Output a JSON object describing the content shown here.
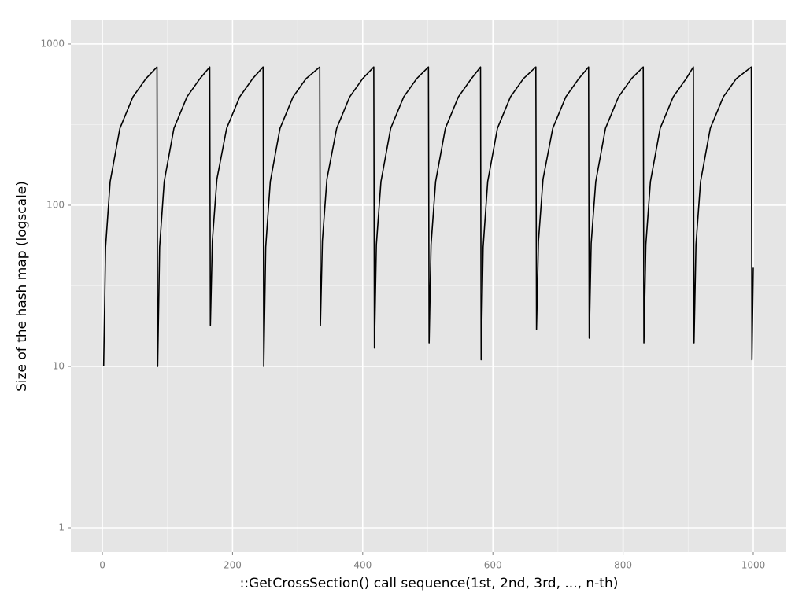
{
  "chart_data": {
    "type": "line",
    "x_label": "::GetCrossSection() call sequence(1st, 2nd, 3rd, ..., n-th)",
    "y_label": "Size of the hash map (logscale)",
    "y_log": true,
    "grid": true,
    "background": "#e5e5e5",
    "xlim": [
      -48.4,
      1049.6
    ],
    "ylim": [
      0.706,
      1400
    ],
    "xticks": [
      0,
      200,
      400,
      600,
      800,
      1000
    ],
    "yticks": [
      1,
      10,
      100,
      1000
    ],
    "series": [
      {
        "color": "#000000",
        "x": [
          2,
          5,
          12,
          27,
          47,
          67,
          84,
          85,
          88,
          95,
          110,
          130,
          150,
          165,
          166,
          169,
          176,
          191,
          211,
          231,
          247,
          248,
          251,
          258,
          273,
          293,
          313,
          334,
          335,
          338,
          345,
          360,
          380,
          400,
          417,
          418,
          421,
          428,
          443,
          463,
          483,
          501,
          502,
          505,
          512,
          527,
          547,
          567,
          581,
          582,
          585,
          592,
          607,
          627,
          647,
          666,
          667,
          670,
          677,
          692,
          712,
          732,
          747,
          748,
          751,
          758,
          773,
          793,
          813,
          831,
          832,
          835,
          842,
          857,
          877,
          897,
          908,
          909,
          912,
          919,
          934,
          954,
          974,
          997,
          998,
          1000
        ],
        "values": [
          10,
          55,
          140,
          300,
          470,
          610,
          720,
          10,
          55,
          140,
          300,
          470,
          610,
          720,
          18,
          60,
          145,
          300,
          470,
          610,
          720,
          10,
          55,
          140,
          300,
          470,
          610,
          720,
          18,
          60,
          145,
          300,
          470,
          610,
          720,
          13,
          57,
          140,
          300,
          470,
          610,
          720,
          14,
          57,
          140,
          300,
          470,
          610,
          720,
          11,
          55,
          140,
          300,
          470,
          610,
          720,
          17,
          60,
          145,
          300,
          470,
          610,
          720,
          15,
          58,
          140,
          300,
          470,
          610,
          720,
          14,
          57,
          140,
          300,
          470,
          610,
          720,
          14,
          57,
          140,
          300,
          470,
          610,
          720,
          11,
          41
        ]
      }
    ]
  }
}
